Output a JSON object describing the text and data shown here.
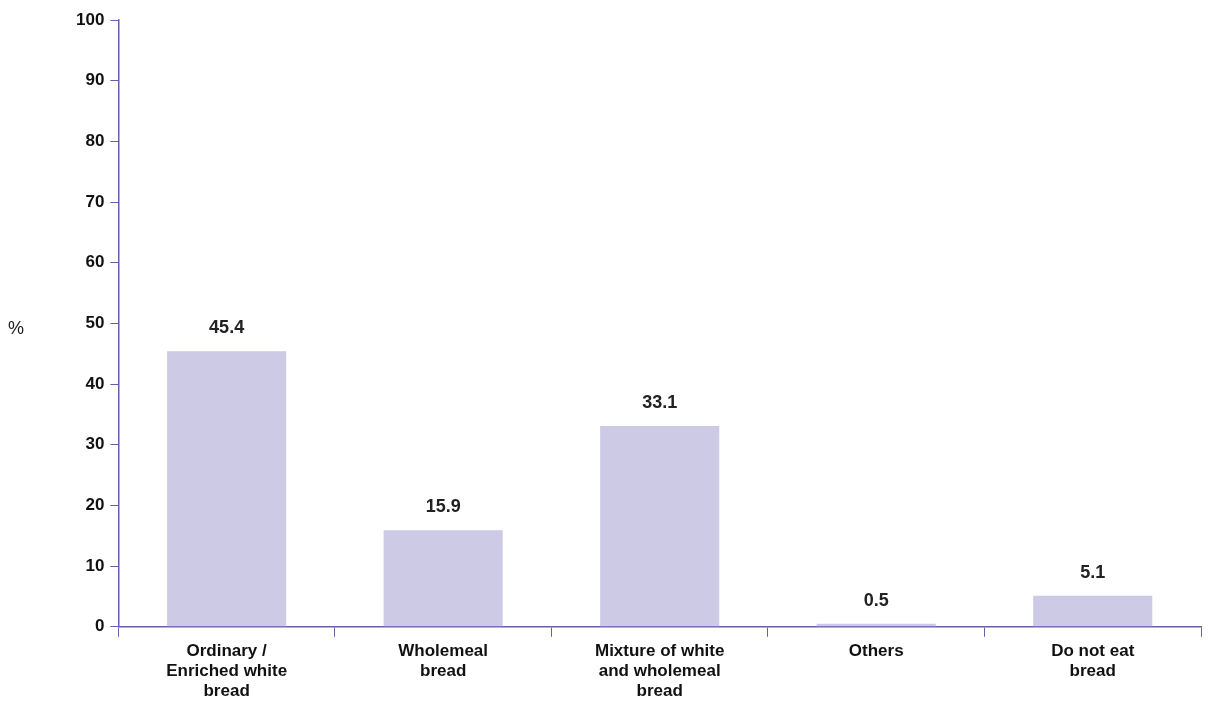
{
  "chart_data": {
    "type": "bar",
    "ylabel": "%",
    "categories": [
      "Ordinary / Enriched white bread",
      "Wholemeal bread",
      "Mixture of white and wholemeal bread",
      "Others",
      "Do not eat bread"
    ],
    "values": [
      45.4,
      15.9,
      33.1,
      0.5,
      5.1
    ],
    "color": "#cdcae6",
    "ylim": [
      0,
      100
    ],
    "yticks": [
      0,
      10,
      20,
      30,
      40,
      50,
      60,
      70,
      80,
      90,
      100
    ],
    "grid": false,
    "data_labels": true
  }
}
